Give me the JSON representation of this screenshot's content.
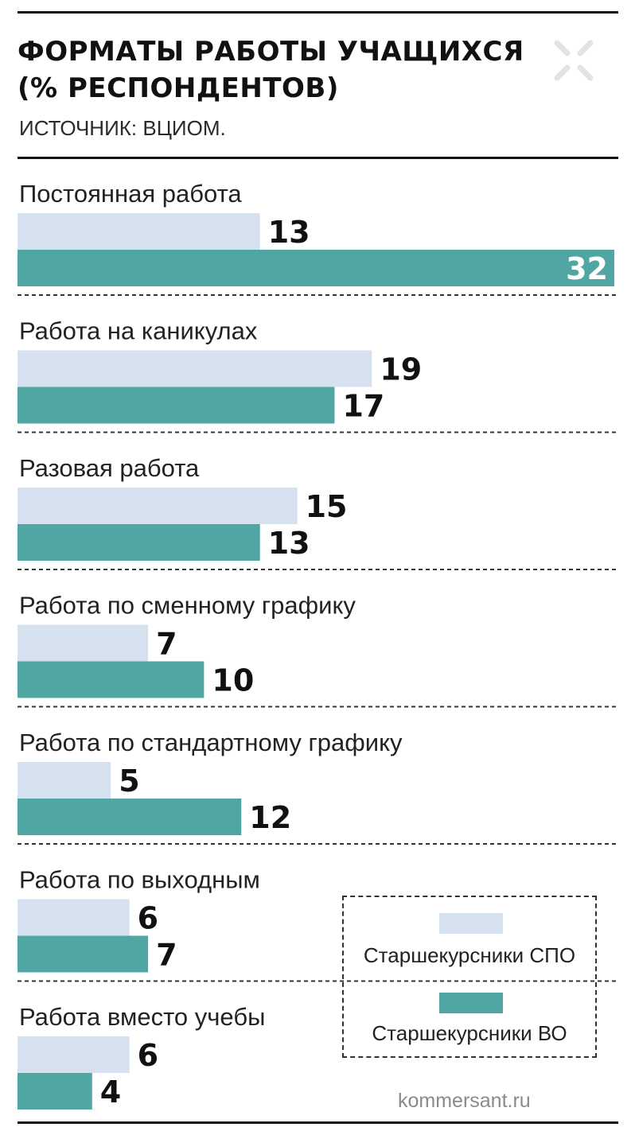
{
  "header": {
    "title_line1": "ФОРМАТЫ РАБОТЫ УЧАЩИХСЯ",
    "title_line2": "(% РЕСПОНДЕНТОВ)",
    "subtitle": "ИСТОЧНИК: ВЦИОМ."
  },
  "footer": {
    "source": "kommersant.ru"
  },
  "colors": {
    "spo": "#d6e1ef",
    "vo": "#4fa6a3",
    "text": "#1a1a1a"
  },
  "icons": {
    "watermark": "arrows-cross-icon"
  },
  "legend": {
    "items": [
      {
        "label": "Старшекурсники СПО",
        "color": "#d6e1ef"
      },
      {
        "label": "Старшекурсники ВО",
        "color": "#4fa6a3"
      }
    ]
  },
  "chart_data": {
    "type": "bar",
    "orientation": "horizontal",
    "title": "ФОРМАТЫ РАБОТЫ УЧАЩИХСЯ (% РЕСПОНДЕНТОВ)",
    "categories": [
      "Постоянная работа",
      "Работа на каникулах",
      "Разовая работа",
      "Работа по сменному графику",
      "Работа по стандартному графику",
      "Работа по выходным",
      "Работа вместо учебы"
    ],
    "series": [
      {
        "name": "Старшекурсники СПО",
        "values": [
          13,
          19,
          15,
          7,
          5,
          6,
          6
        ]
      },
      {
        "name": "Старшекурсники ВО",
        "values": [
          32,
          17,
          13,
          10,
          12,
          7,
          4
        ]
      }
    ],
    "xlim": [
      0,
      32
    ],
    "grid": false,
    "legend_position": "bottom-right"
  }
}
